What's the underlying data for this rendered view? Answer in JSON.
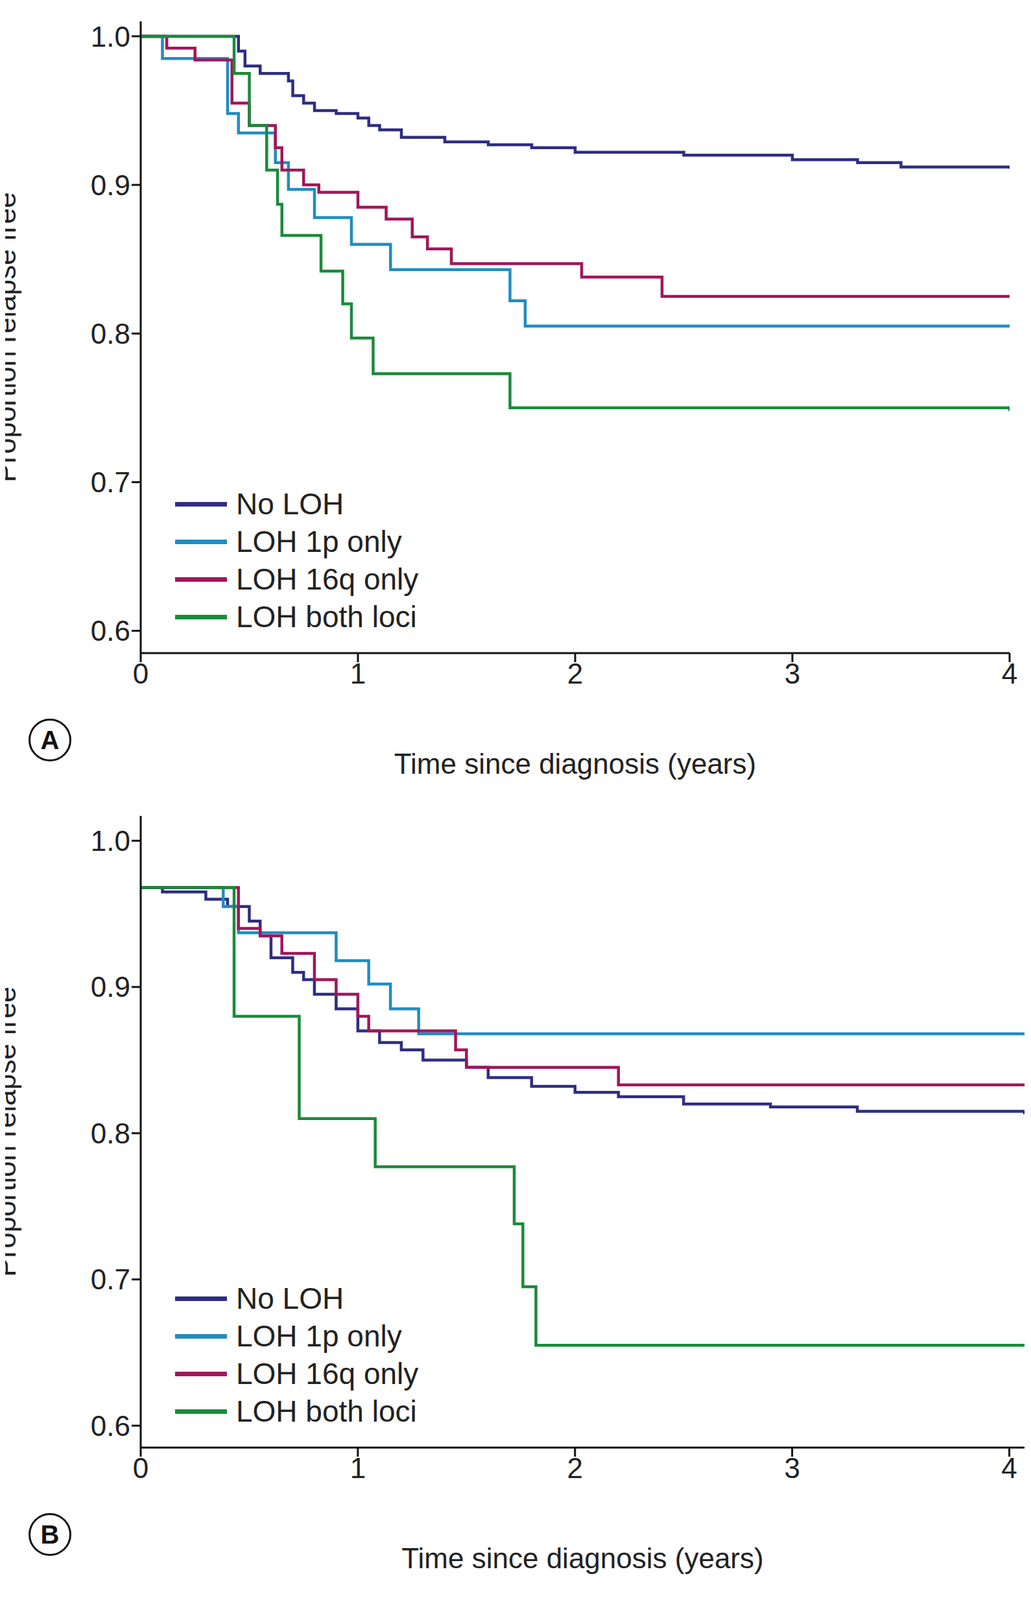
{
  "chart_data": [
    {
      "type": "step",
      "annotations": [
        "A"
      ],
      "x_label": "Time since diagnosis (years)",
      "y_label": "Proportion relapse free",
      "xlim": [
        0,
        4
      ],
      "xticks": [
        0,
        1,
        2,
        3,
        4
      ],
      "ylim": [
        0.585,
        1.01
      ],
      "yticks": [
        0.6,
        0.7,
        0.8,
        0.9,
        {
          "value": 1,
          "label": "1.0"
        }
      ],
      "series": [
        {
          "name": "No LOH",
          "color": "#2e2d83",
          "x": [
            0,
            0.45,
            0.48,
            0.55,
            0.68,
            0.7,
            0.75,
            0.8,
            0.9,
            1.0,
            1.05,
            1.1,
            1.2,
            1.4,
            1.6,
            1.8,
            2.0,
            2.5,
            3.0,
            3.3,
            3.5,
            4.0
          ],
          "values": [
            1.0,
            0.99,
            0.98,
            0.975,
            0.97,
            0.96,
            0.955,
            0.95,
            0.948,
            0.945,
            0.94,
            0.937,
            0.932,
            0.929,
            0.927,
            0.925,
            0.922,
            0.92,
            0.917,
            0.915,
            0.912,
            0.911
          ]
        },
        {
          "name": "LOH 1p only",
          "color": "#1f8dc1",
          "x": [
            0,
            0.1,
            0.4,
            0.45,
            0.62,
            0.68,
            0.8,
            0.97,
            1.15,
            1.7,
            1.77,
            4.0
          ],
          "values": [
            1.0,
            0.985,
            0.948,
            0.935,
            0.915,
            0.897,
            0.878,
            0.86,
            0.843,
            0.822,
            0.805,
            0.805
          ]
        },
        {
          "name": "LOH 16q only",
          "color": "#a0175a",
          "x": [
            0,
            0.12,
            0.25,
            0.42,
            0.5,
            0.62,
            0.65,
            0.75,
            0.82,
            1.0,
            1.13,
            1.25,
            1.32,
            1.43,
            2.03,
            2.4,
            4.0
          ],
          "values": [
            1.0,
            0.992,
            0.984,
            0.955,
            0.94,
            0.925,
            0.91,
            0.9,
            0.895,
            0.885,
            0.877,
            0.865,
            0.857,
            0.847,
            0.838,
            0.825,
            0.825
          ]
        },
        {
          "name": "LOH both loci",
          "color": "#1b8a3b",
          "x": [
            0,
            0.43,
            0.5,
            0.58,
            0.63,
            0.65,
            0.83,
            0.93,
            0.97,
            1.07,
            1.7,
            4.0
          ],
          "values": [
            1.0,
            0.975,
            0.94,
            0.91,
            0.887,
            0.866,
            0.842,
            0.82,
            0.797,
            0.773,
            0.75,
            0.748
          ]
        }
      ]
    },
    {
      "type": "step",
      "annotations": [
        "B"
      ],
      "x_label": "Time since diagnosis (years)",
      "y_label": "Proportion relapse free",
      "xlim": [
        0,
        4.07
      ],
      "xticks": [
        0,
        1,
        2,
        3,
        4
      ],
      "ylim": [
        0.585,
        1.017
      ],
      "yticks": [
        0.6,
        0.7,
        0.8,
        0.9,
        {
          "value": 1,
          "label": "1.0"
        }
      ],
      "series": [
        {
          "name": "No LOH",
          "color": "#2e2d83",
          "x": [
            0,
            0.1,
            0.3,
            0.4,
            0.5,
            0.55,
            0.6,
            0.7,
            0.75,
            0.8,
            0.9,
            1.0,
            1.1,
            1.2,
            1.3,
            1.5,
            1.6,
            1.8,
            2.0,
            2.2,
            2.5,
            2.9,
            3.3,
            4.07
          ],
          "values": [
            0.968,
            0.965,
            0.96,
            0.955,
            0.945,
            0.935,
            0.92,
            0.91,
            0.905,
            0.895,
            0.885,
            0.87,
            0.862,
            0.857,
            0.85,
            0.845,
            0.838,
            0.832,
            0.828,
            0.825,
            0.82,
            0.818,
            0.815,
            0.813
          ]
        },
        {
          "name": "LOH 1p only",
          "color": "#1f8dc1",
          "x": [
            0,
            0.38,
            0.45,
            0.9,
            1.05,
            1.15,
            1.28,
            4.07
          ],
          "values": [
            0.968,
            0.955,
            0.937,
            0.918,
            0.902,
            0.885,
            0.868,
            0.868
          ]
        },
        {
          "name": "LOH 16q only",
          "color": "#a0175a",
          "x": [
            0,
            0.45,
            0.55,
            0.65,
            0.8,
            0.9,
            1.0,
            1.05,
            1.45,
            1.5,
            2.2,
            4.07
          ],
          "values": [
            0.968,
            0.94,
            0.935,
            0.923,
            0.905,
            0.895,
            0.88,
            0.87,
            0.857,
            0.845,
            0.833,
            0.833
          ]
        },
        {
          "name": "LOH both loci",
          "color": "#1b8a3b",
          "x": [
            0,
            0.43,
            0.73,
            1.08,
            1.72,
            1.76,
            1.82,
            4.07
          ],
          "values": [
            0.968,
            0.88,
            0.81,
            0.777,
            0.738,
            0.695,
            0.655,
            0.655
          ]
        }
      ]
    }
  ]
}
